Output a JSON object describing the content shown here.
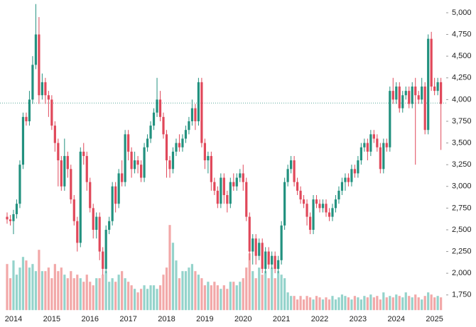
{
  "chart_data": {
    "type": "candlestick",
    "categories": [
      null,
      null,
      "2014",
      null,
      null,
      null,
      null,
      null,
      null,
      null,
      null,
      null,
      null,
      null,
      "2015",
      null,
      null,
      null,
      null,
      null,
      null,
      null,
      null,
      null,
      null,
      null,
      "2016",
      null,
      null,
      null,
      null,
      null,
      null,
      null,
      null,
      null,
      null,
      null,
      "2017",
      null,
      null,
      null,
      null,
      null,
      null,
      null,
      null,
      null,
      null,
      null,
      "2018",
      null,
      null,
      null,
      null,
      null,
      null,
      null,
      null,
      null,
      null,
      null,
      "2019",
      null,
      null,
      null,
      null,
      null,
      null,
      null,
      null,
      null,
      null,
      null,
      "2020",
      null,
      null,
      null,
      null,
      null,
      null,
      null,
      null,
      null,
      null,
      null,
      "2021",
      null,
      null,
      null,
      null,
      null,
      null,
      null,
      null,
      null,
      null,
      null,
      "2022",
      null,
      null,
      null,
      null,
      null,
      null,
      null,
      null,
      null,
      null,
      null,
      "2023",
      null,
      null,
      null,
      null,
      null,
      null,
      null,
      null,
      null,
      null,
      null,
      "2024",
      null,
      null,
      null,
      null,
      null,
      null,
      null,
      null,
      null,
      null,
      null,
      "2025",
      null,
      null
    ],
    "open": [
      2650,
      2620,
      2600,
      2680,
      2800,
      3250,
      3800,
      3750,
      4000,
      4400,
      4750,
      4050,
      4200,
      4050,
      4000,
      3700,
      3500,
      3300,
      3000,
      3350,
      3200,
      2850,
      2600,
      2350,
      3400,
      3350,
      3050,
      2750,
      2500,
      2650,
      2250,
      2050,
      2500,
      2600,
      3000,
      2800,
      3150,
      3050,
      3600,
      3400,
      3200,
      3300,
      3250,
      3100,
      3450,
      3550,
      3700,
      3850,
      4000,
      3800,
      3600,
      3300,
      3200,
      3400,
      3500,
      3450,
      3550,
      3650,
      3750,
      3900,
      3750,
      4200,
      3500,
      3300,
      3350,
      3050,
      2950,
      2800,
      3100,
      2900,
      2800,
      3050,
      3000,
      3100,
      3150,
      3050,
      2650,
      2250,
      2400,
      2200,
      2350,
      2050,
      2250,
      2100,
      2200,
      2050,
      2150,
      2550,
      3050,
      3200,
      3300,
      3050,
      2950,
      2850,
      2800,
      2650,
      2500,
      2850,
      2800,
      2750,
      2800,
      2700,
      2650,
      2750,
      2850,
      2950,
      3050,
      3100,
      3050,
      3200,
      3150,
      3300,
      3450,
      3500,
      3400,
      3600,
      3550,
      3450,
      3200,
      3500,
      3450,
      4100,
      4000,
      4150,
      3900,
      4050,
      4100,
      3950,
      4150,
      4050,
      4000,
      4150,
      3650,
      4700,
      4150,
      4100,
      4200
    ],
    "high": [
      2700,
      2670,
      2730,
      2850,
      3300,
      3850,
      3850,
      4100,
      4500,
      5100,
      4950,
      4300,
      4250,
      4100,
      4050,
      3750,
      3550,
      3350,
      3550,
      3400,
      3250,
      2900,
      2650,
      3450,
      3500,
      3400,
      3100,
      2800,
      2700,
      2700,
      2300,
      2550,
      2650,
      3050,
      3050,
      3200,
      3300,
      3650,
      3650,
      3450,
      3400,
      3350,
      3300,
      3500,
      3600,
      3750,
      3900,
      4250,
      4100,
      3850,
      3650,
      3350,
      3450,
      3550,
      3600,
      3600,
      3700,
      3800,
      4000,
      3950,
      4250,
      4250,
      3550,
      3400,
      3400,
      3100,
      3000,
      3150,
      3150,
      2950,
      3100,
      3150,
      3150,
      3200,
      3250,
      3100,
      2700,
      2450,
      2450,
      2400,
      2400,
      2300,
      2300,
      2250,
      2250,
      2200,
      2600,
      3100,
      3250,
      3350,
      3350,
      3100,
      3000,
      2900,
      2850,
      2700,
      2900,
      2900,
      2850,
      2850,
      2850,
      2750,
      2800,
      2900,
      3000,
      3100,
      3150,
      3150,
      3250,
      3250,
      3350,
      3500,
      3550,
      3550,
      3650,
      3650,
      3600,
      3500,
      3550,
      3550,
      4150,
      4250,
      4200,
      4200,
      4100,
      4150,
      4150,
      4200,
      4250,
      4100,
      4250,
      4200,
      4750,
      4780,
      4250,
      4250,
      4250
    ],
    "low": [
      2570,
      2550,
      2450,
      2630,
      2750,
      3200,
      3700,
      3700,
      3950,
      4350,
      3950,
      4000,
      3950,
      3800,
      3650,
      3400,
      3000,
      2950,
      2950,
      3100,
      2800,
      2550,
      2250,
      2300,
      3250,
      2950,
      2700,
      2400,
      2400,
      2150,
      1980,
      2000,
      2450,
      2550,
      2700,
      2750,
      3000,
      3000,
      3300,
      3100,
      3150,
      3150,
      3050,
      3050,
      3400,
      3500,
      3650,
      3800,
      3750,
      3550,
      3100,
      3100,
      3150,
      3350,
      3400,
      3400,
      3500,
      3600,
      3700,
      3650,
      3700,
      3450,
      3200,
      3150,
      2950,
      2900,
      2750,
      2750,
      2800,
      2700,
      2750,
      2950,
      2950,
      3050,
      2950,
      2600,
      2150,
      2100,
      2100,
      2150,
      2000,
      2000,
      2050,
      2050,
      2000,
      2000,
      2100,
      2500,
      3000,
      3150,
      3000,
      2900,
      2800,
      2750,
      2550,
      2450,
      2450,
      2750,
      2700,
      2700,
      2650,
      2600,
      2600,
      2700,
      2800,
      2900,
      2950,
      3000,
      3000,
      3100,
      3100,
      3250,
      3400,
      3300,
      3350,
      3500,
      3400,
      3150,
      3150,
      3400,
      3400,
      3950,
      3950,
      3850,
      3850,
      4000,
      3900,
      3900,
      3250,
      3950,
      3950,
      3600,
      3600,
      4100,
      4050,
      4050,
      3420
    ],
    "close": [
      2620,
      2600,
      2680,
      2800,
      3250,
      3800,
      3750,
      4000,
      4400,
      4750,
      4050,
      4200,
      4050,
      4000,
      3700,
      3500,
      3300,
      3000,
      3350,
      3200,
      2850,
      2600,
      2350,
      3400,
      3350,
      3050,
      2750,
      2500,
      2650,
      2250,
      2050,
      2500,
      2600,
      3000,
      2800,
      3150,
      3050,
      3600,
      3400,
      3200,
      3300,
      3250,
      3100,
      3450,
      3550,
      3700,
      3850,
      4000,
      3800,
      3600,
      3300,
      3200,
      3400,
      3500,
      3450,
      3550,
      3650,
      3750,
      3900,
      3750,
      4200,
      3500,
      3300,
      3350,
      3050,
      2950,
      2800,
      3100,
      2900,
      2800,
      3050,
      3000,
      3100,
      3150,
      3050,
      2650,
      2250,
      2400,
      2200,
      2350,
      2050,
      2250,
      2100,
      2200,
      2050,
      2150,
      2550,
      3050,
      3200,
      3300,
      3050,
      2950,
      2850,
      2800,
      2650,
      2500,
      2850,
      2800,
      2750,
      2800,
      2700,
      2650,
      2750,
      2850,
      2950,
      3050,
      3100,
      3050,
      3200,
      3150,
      3300,
      3450,
      3500,
      3400,
      3600,
      3550,
      3450,
      3200,
      3500,
      3450,
      4100,
      4000,
      4150,
      3900,
      4050,
      4100,
      3950,
      4150,
      4050,
      4000,
      4150,
      3650,
      4700,
      4150,
      4100,
      4200,
      3950
    ],
    "volume": [
      65,
      45,
      70,
      50,
      60,
      75,
      70,
      60,
      65,
      55,
      85,
      55,
      55,
      60,
      45,
      65,
      55,
      60,
      50,
      45,
      55,
      45,
      50,
      45,
      40,
      50,
      40,
      35,
      45,
      45,
      50,
      55,
      40,
      45,
      40,
      50,
      55,
      45,
      40,
      35,
      30,
      25,
      30,
      35,
      30,
      35,
      35,
      30,
      35,
      50,
      60,
      120,
      95,
      70,
      45,
      55,
      55,
      60,
      65,
      55,
      50,
      45,
      35,
      40,
      35,
      40,
      35,
      30,
      35,
      30,
      40,
      40,
      35,
      40,
      45,
      60,
      80,
      55,
      45,
      60,
      50,
      55,
      45,
      60,
      45,
      55,
      50,
      45,
      25,
      20,
      20,
      15,
      20,
      15,
      20,
      18,
      15,
      20,
      18,
      15,
      18,
      15,
      20,
      15,
      18,
      22,
      20,
      18,
      15,
      20,
      18,
      15,
      20,
      18,
      22,
      18,
      20,
      15,
      25,
      18,
      20,
      18,
      22,
      20,
      18,
      25,
      20,
      18,
      22,
      18,
      15,
      20,
      25,
      22,
      18,
      20,
      18
    ],
    "up_color": "#22917f",
    "down_color": "#e0485a",
    "volume_up_color": "#94d3cb",
    "volume_down_color": "#f2a8a8",
    "price_line": 3960,
    "price_line_color": "#5aa89c",
    "ylim": [
      1575,
      5150
    ],
    "yticks": [
      {
        "value": 1750,
        "label": "1,750"
      },
      {
        "value": 2000,
        "label": "2,000"
      },
      {
        "value": 2250,
        "label": "2,250"
      },
      {
        "value": 2500,
        "label": "2,500"
      },
      {
        "value": 2750,
        "label": "2,750"
      },
      {
        "value": 3000,
        "label": "3,000"
      },
      {
        "value": 3250,
        "label": "3,250"
      },
      {
        "value": 3500,
        "label": "3,500"
      },
      {
        "value": 3750,
        "label": "3,750"
      },
      {
        "value": 4000,
        "label": "4,000"
      },
      {
        "value": 4250,
        "label": "4,250"
      },
      {
        "value": 4500,
        "label": "4,500"
      },
      {
        "value": 4750,
        "label": "4,750"
      },
      {
        "value": 5000,
        "label": "5,000"
      }
    ],
    "grid": false
  }
}
